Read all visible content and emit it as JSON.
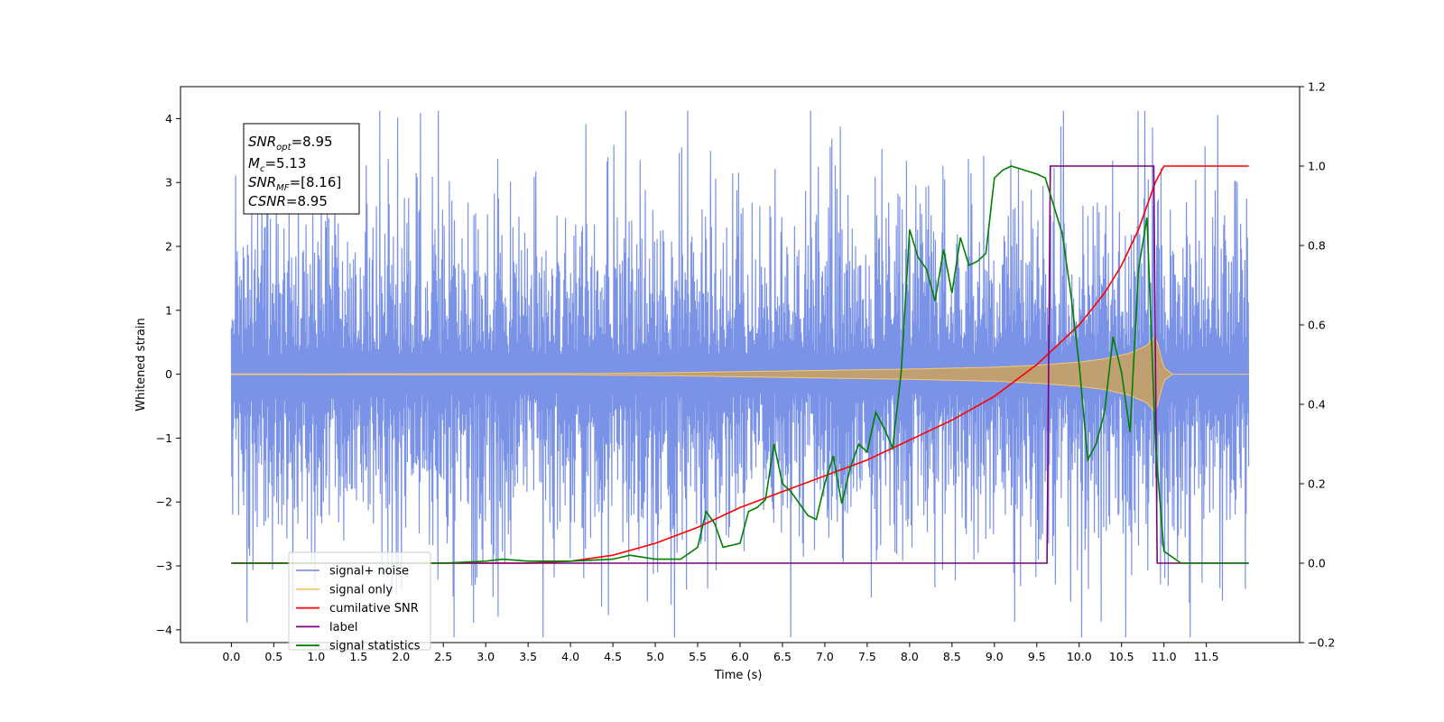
{
  "chart_data": {
    "type": "line",
    "xlabel": "Time (s)",
    "ylabel": "Whitened strain",
    "x_range": [
      -0.6,
      12.6
    ],
    "ylim_left": [
      -4.2,
      4.5
    ],
    "ylim_right": [
      -0.2,
      1.2
    ],
    "x_ticks": [
      "0.0",
      "0.5",
      "1.0",
      "1.5",
      "2.0",
      "2.5",
      "3.0",
      "3.5",
      "4.0",
      "4.5",
      "5.0",
      "5.5",
      "6.0",
      "6.5",
      "7.0",
      "7.5",
      "8.0",
      "8.5",
      "9.0",
      "9.5",
      "10.0",
      "10.5",
      "11.0",
      "11.5"
    ],
    "y_ticks_left": [
      "4",
      "3",
      "2",
      "1",
      "0",
      "−1",
      "−2",
      "−3",
      "−4"
    ],
    "y_ticks_right": [
      "1.2",
      "1.0",
      "0.8",
      "0.6",
      "0.4",
      "0.2",
      "0.0",
      "−0.2"
    ],
    "grid": false,
    "legend_position": "lower-left",
    "annotation": {
      "snr_opt": {
        "main": "SNR",
        "sub": "opt",
        "value": "=8.95"
      },
      "mc": {
        "main": "M",
        "sub": "c",
        "value": "=5.13"
      },
      "snr_mf": {
        "main": "SNR",
        "sub": "MF",
        "value": "=[8.16]"
      },
      "csnr": {
        "main": "CSNR",
        "sub": "",
        "value": "=8.95"
      }
    },
    "series": [
      {
        "name": "signal+ noise",
        "axis": "left",
        "color": "#7b93e6",
        "description_values": {
          "x_start": 0.0,
          "x_end": 12.0,
          "noise_std": 1.0,
          "typical_peak": 2.5,
          "max": 4.12
        }
      },
      {
        "name": "signal only",
        "axis": "left",
        "color": "#f5c878",
        "envelope": {
          "x": [
            0.0,
            4.0,
            5.0,
            6.0,
            7.0,
            8.0,
            9.0,
            9.5,
            10.0,
            10.3,
            10.6,
            10.8,
            10.9,
            11.0,
            11.1,
            12.0
          ],
          "amp": [
            0.005,
            0.01,
            0.02,
            0.04,
            0.06,
            0.08,
            0.11,
            0.14,
            0.19,
            0.24,
            0.33,
            0.45,
            0.6,
            0.1,
            0.0,
            0.0
          ]
        }
      },
      {
        "name": "cumilative SNR",
        "axis": "right",
        "color": "#ff0000",
        "x": [
          0.0,
          3.0,
          3.5,
          4.0,
          4.5,
          5.0,
          5.5,
          6.0,
          6.5,
          7.0,
          7.5,
          8.0,
          8.5,
          9.0,
          9.5,
          10.0,
          10.3,
          10.5,
          10.7,
          10.8,
          10.9,
          11.0,
          11.5,
          12.0
        ],
        "values": [
          0.0,
          0.0,
          0.0,
          0.005,
          0.02,
          0.05,
          0.09,
          0.14,
          0.18,
          0.22,
          0.26,
          0.31,
          0.36,
          0.42,
          0.5,
          0.6,
          0.68,
          0.75,
          0.84,
          0.9,
          0.96,
          1.0,
          1.0,
          1.0
        ]
      },
      {
        "name": "label",
        "axis": "right",
        "color": "#800080",
        "x": [
          0.0,
          9.62,
          9.66,
          10.88,
          10.92,
          12.0
        ],
        "values": [
          0.0,
          0.0,
          1.0,
          1.0,
          0.0,
          0.0
        ]
      },
      {
        "name": "signal statistics",
        "axis": "right",
        "color": "#008000",
        "x": [
          0.0,
          2.5,
          3.0,
          3.2,
          3.5,
          4.0,
          4.5,
          4.7,
          5.0,
          5.3,
          5.5,
          5.6,
          5.7,
          5.8,
          6.0,
          6.1,
          6.2,
          6.3,
          6.4,
          6.5,
          6.6,
          6.7,
          6.8,
          6.9,
          7.0,
          7.1,
          7.2,
          7.3,
          7.4,
          7.5,
          7.6,
          7.7,
          7.8,
          7.9,
          8.0,
          8.1,
          8.2,
          8.3,
          8.4,
          8.5,
          8.6,
          8.7,
          8.8,
          8.9,
          9.0,
          9.1,
          9.2,
          9.5,
          9.6,
          9.7,
          9.8,
          9.9,
          10.0,
          10.1,
          10.2,
          10.3,
          10.4,
          10.5,
          10.6,
          10.7,
          10.8,
          10.9,
          11.0,
          11.2,
          11.5,
          12.0
        ],
        "values": [
          0.0,
          0.0,
          0.005,
          0.01,
          0.005,
          0.005,
          0.01,
          0.02,
          0.01,
          0.01,
          0.04,
          0.13,
          0.1,
          0.04,
          0.05,
          0.13,
          0.14,
          0.16,
          0.3,
          0.2,
          0.18,
          0.15,
          0.12,
          0.11,
          0.2,
          0.27,
          0.15,
          0.24,
          0.3,
          0.28,
          0.38,
          0.34,
          0.29,
          0.48,
          0.84,
          0.77,
          0.74,
          0.66,
          0.79,
          0.68,
          0.82,
          0.75,
          0.76,
          0.78,
          0.97,
          0.99,
          1.0,
          0.98,
          0.97,
          0.9,
          0.83,
          0.68,
          0.5,
          0.26,
          0.3,
          0.38,
          0.57,
          0.48,
          0.33,
          0.74,
          0.87,
          0.3,
          0.03,
          0.0,
          0.0,
          0.0
        ]
      }
    ]
  }
}
